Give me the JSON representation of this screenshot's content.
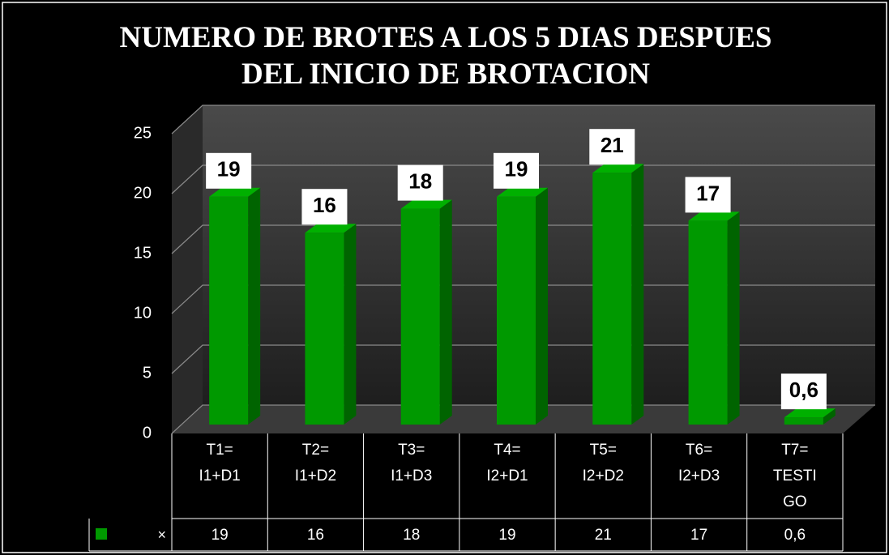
{
  "chart_data": {
    "type": "bar3d",
    "title": "NUMERO DE BROTES A LOS 5 DIAS DESPUES DEL INICIO DE BROTACION",
    "categories": [
      "T1= I1+D1",
      "T2= I1+D2",
      "T3= I1+D3",
      "T4= I2+D1",
      "T5= I2+D2",
      "T6= I2+D3",
      "T7= TESTIGO"
    ],
    "series": [
      {
        "name": "×",
        "color": "#009900",
        "values": [
          19,
          16,
          18,
          19,
          21,
          17,
          0.6
        ],
        "value_labels": [
          "19",
          "16",
          "18",
          "19",
          "21",
          "17",
          "0,6"
        ]
      }
    ],
    "ylim": [
      0,
      25
    ],
    "yticks": [
      0,
      5,
      10,
      15,
      20,
      25
    ],
    "grid": true,
    "data_table": true
  }
}
